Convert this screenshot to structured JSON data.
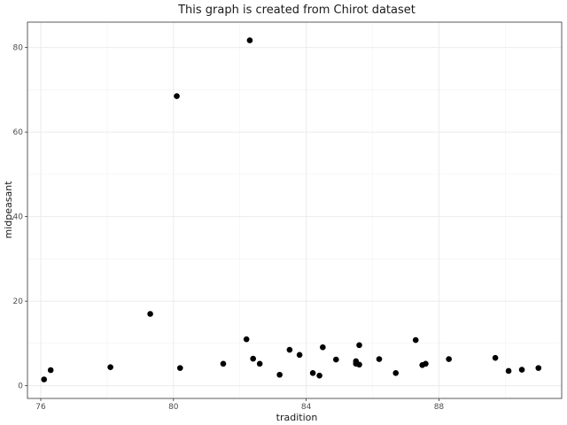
{
  "chart_data": {
    "type": "scatter",
    "title": "This graph is created from Chirot dataset",
    "xlabel": "tradition",
    "ylabel": "midpeasant",
    "xlim": [
      75.6,
      91.7
    ],
    "ylim": [
      -3,
      86
    ],
    "xticks": [
      76,
      80,
      84,
      88
    ],
    "yticks": [
      0,
      20,
      40,
      60,
      80
    ],
    "xtick_labels": [
      "76",
      "80",
      "84",
      "88"
    ],
    "ytick_labels": [
      "0",
      "20",
      "40",
      "60",
      "80"
    ],
    "grid": true,
    "point_color": "#000000",
    "points": [
      {
        "x": 76.1,
        "y": 1.5
      },
      {
        "x": 76.3,
        "y": 3.7
      },
      {
        "x": 78.1,
        "y": 4.4
      },
      {
        "x": 79.3,
        "y": 17.0
      },
      {
        "x": 80.1,
        "y": 68.5
      },
      {
        "x": 80.2,
        "y": 4.2
      },
      {
        "x": 81.5,
        "y": 5.2
      },
      {
        "x": 82.2,
        "y": 11.0
      },
      {
        "x": 82.3,
        "y": 81.7
      },
      {
        "x": 82.4,
        "y": 6.4
      },
      {
        "x": 82.6,
        "y": 5.2
      },
      {
        "x": 83.2,
        "y": 2.6
      },
      {
        "x": 83.5,
        "y": 8.5
      },
      {
        "x": 83.8,
        "y": 7.3
      },
      {
        "x": 84.2,
        "y": 3.0
      },
      {
        "x": 84.4,
        "y": 2.4
      },
      {
        "x": 84.5,
        "y": 9.1
      },
      {
        "x": 84.9,
        "y": 6.2
      },
      {
        "x": 85.5,
        "y": 5.8
      },
      {
        "x": 85.5,
        "y": 5.2
      },
      {
        "x": 85.6,
        "y": 9.6
      },
      {
        "x": 85.6,
        "y": 5.0
      },
      {
        "x": 86.2,
        "y": 6.3
      },
      {
        "x": 86.7,
        "y": 3.0
      },
      {
        "x": 87.3,
        "y": 10.8
      },
      {
        "x": 87.5,
        "y": 4.9
      },
      {
        "x": 87.6,
        "y": 5.2
      },
      {
        "x": 88.3,
        "y": 6.3
      },
      {
        "x": 89.7,
        "y": 6.6
      },
      {
        "x": 90.1,
        "y": 3.5
      },
      {
        "x": 90.5,
        "y": 3.8
      },
      {
        "x": 91.0,
        "y": 4.2
      }
    ]
  }
}
